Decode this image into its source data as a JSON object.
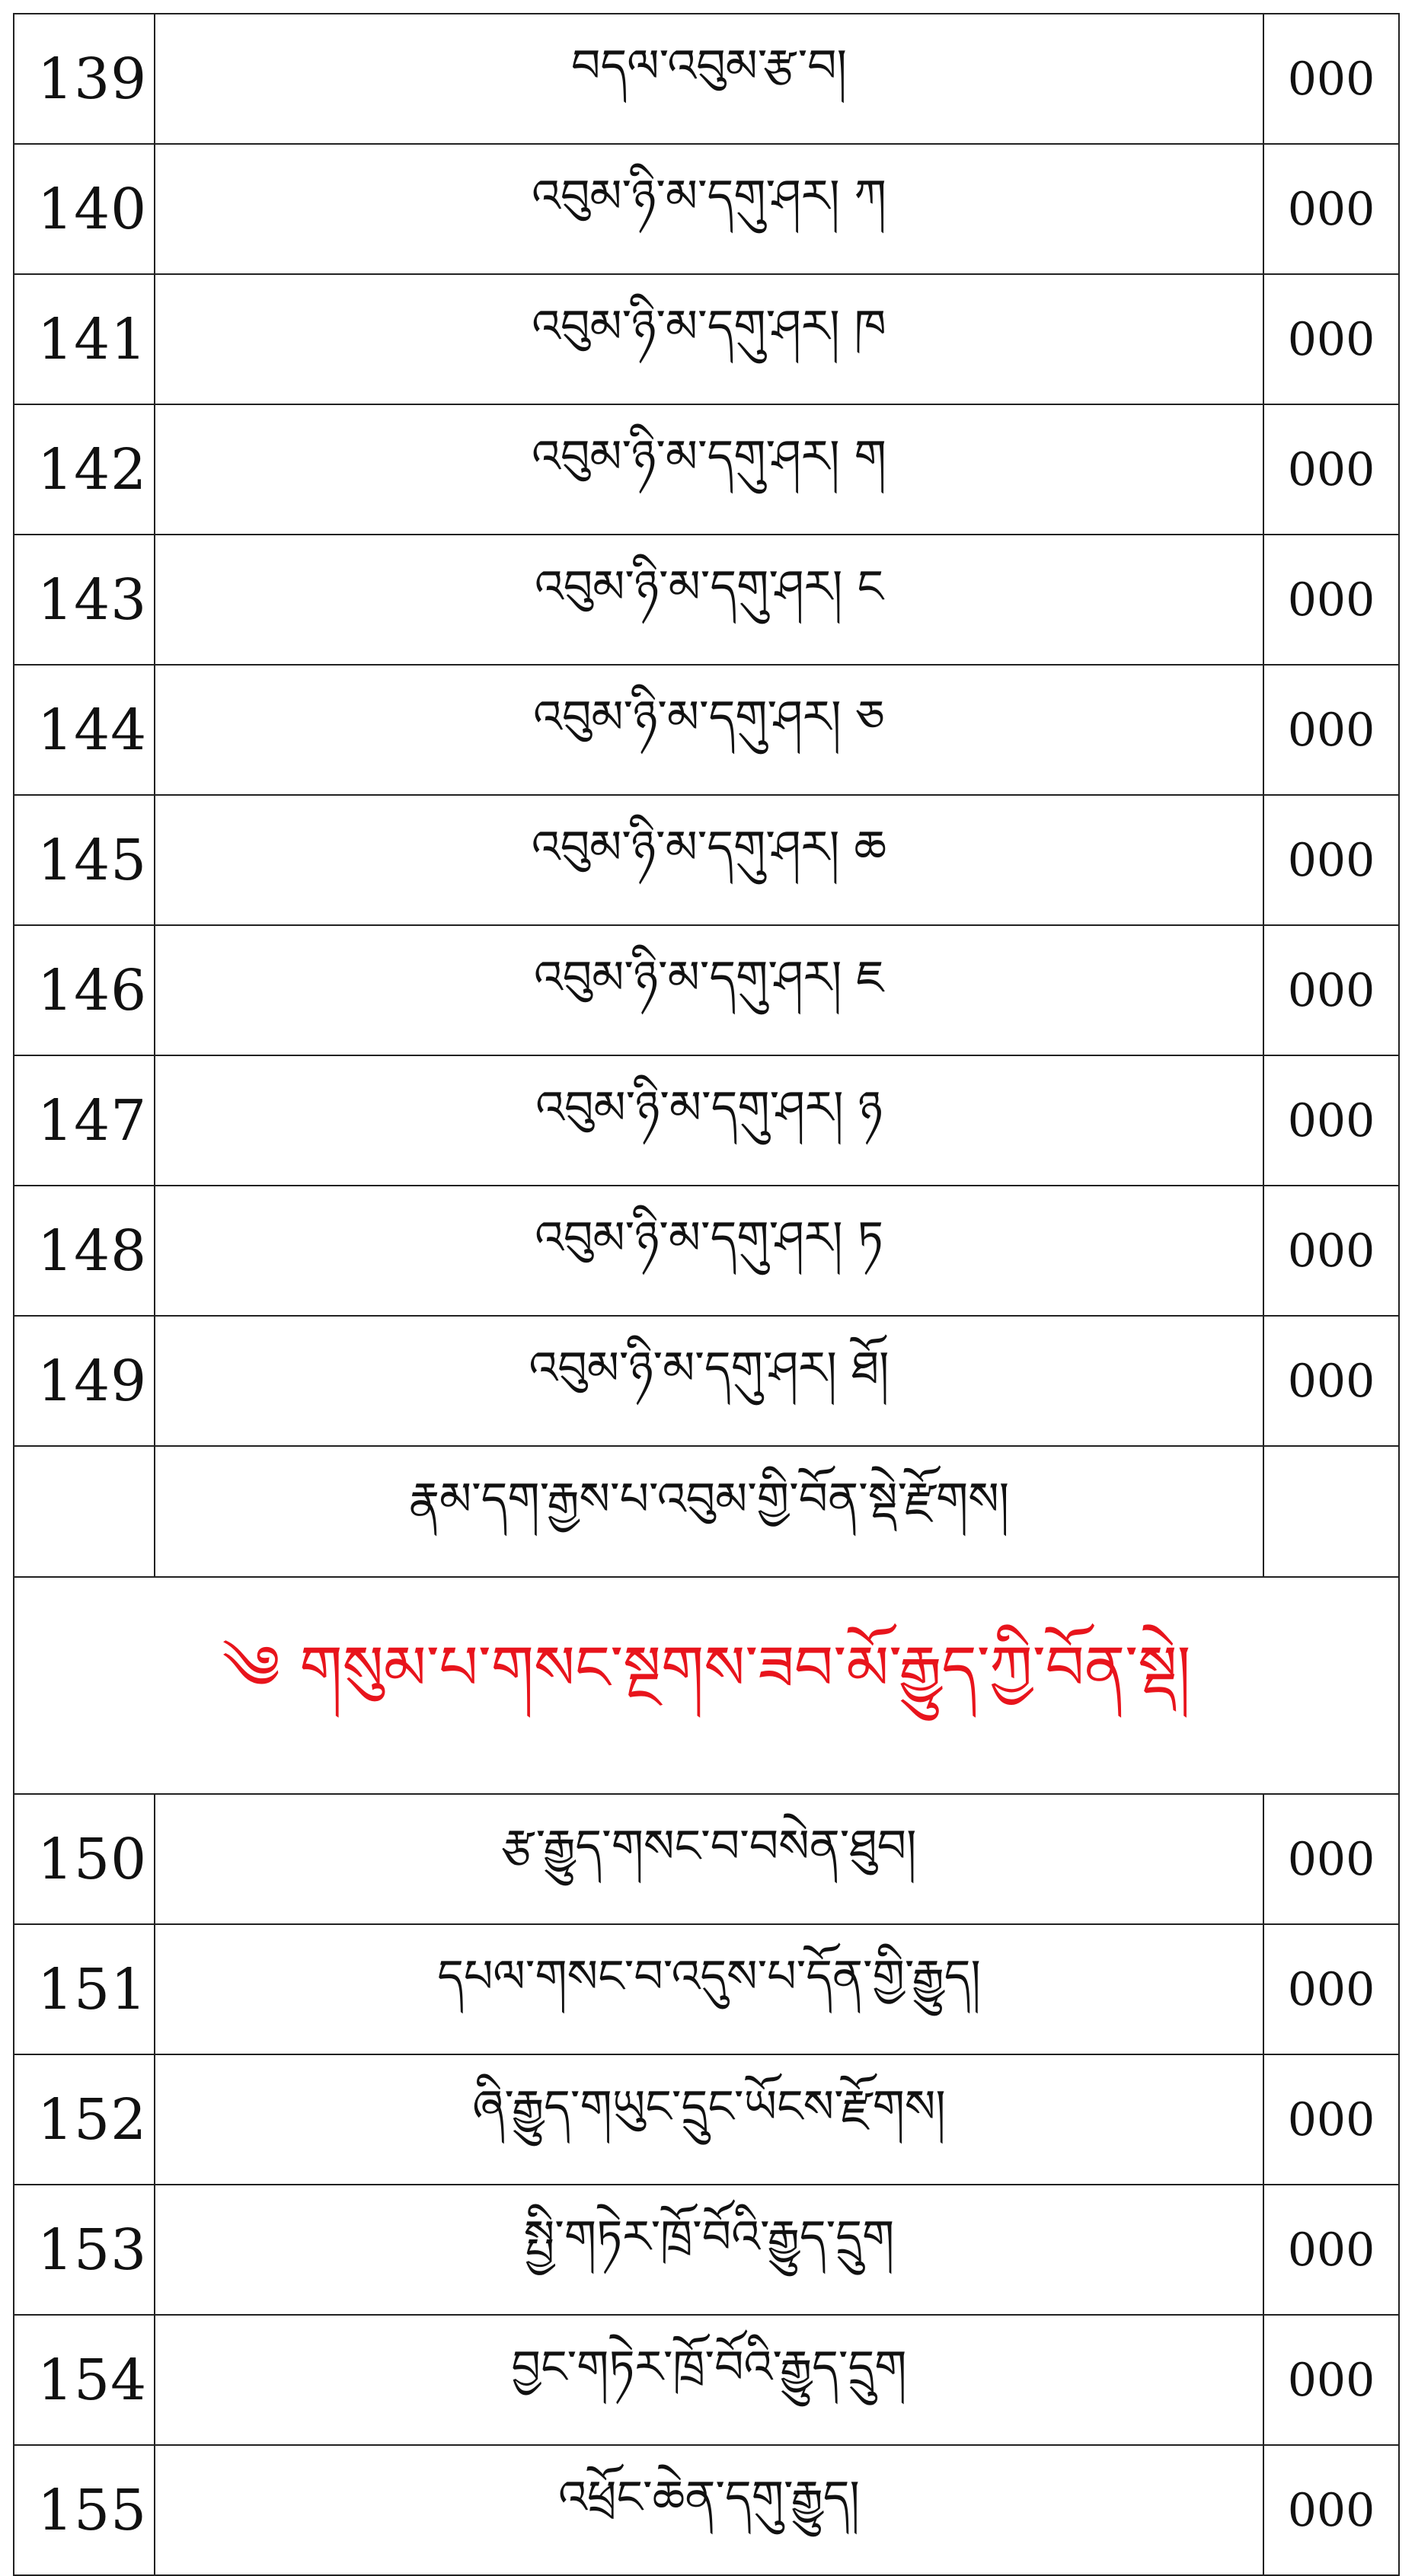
{
  "rows_before": [
    {
      "no": "139",
      "title": "བདལ་འབུམ་རྩ་བ།",
      "page": "000"
    },
    {
      "no": "140",
      "title": "འབུམ་ཉི་མ་དགུ་ཤར། ཀ",
      "page": "000"
    },
    {
      "no": "141",
      "title": "འབུམ་ཉི་མ་དགུ་ཤར། ཁ",
      "page": "000"
    },
    {
      "no": "142",
      "title": "འབུམ་ཉི་མ་དགུ་ཤར། ག",
      "page": "000"
    },
    {
      "no": "143",
      "title": "འབུམ་ཉི་མ་དགུ་ཤར། ང",
      "page": "000"
    },
    {
      "no": "144",
      "title": "འབུམ་ཉི་མ་དགུ་ཤར། ཅ",
      "page": "000"
    },
    {
      "no": "145",
      "title": "འབུམ་ཉི་མ་དགུ་ཤར། ཆ",
      "page": "000"
    },
    {
      "no": "146",
      "title": "འབུམ་ཉི་མ་དགུ་ཤར། ཇ",
      "page": "000"
    },
    {
      "no": "147",
      "title": "འབུམ་ཉི་མ་དགུ་ཤར། ཉ",
      "page": "000"
    },
    {
      "no": "148",
      "title": "འབུམ་ཉི་མ་དགུ་ཤར། ཏ",
      "page": "000"
    },
    {
      "no": "149",
      "title": "འབུམ་ཉི་མ་དགུ་ཤར། ཐོ།",
      "page": "000"
    }
  ],
  "section_end": "རྣམ་དག་རྒྱས་པ་འབུམ་གྱི་བོན་སྡེ་རྫོགས།",
  "section_heading": {
    "text": "༄ གསུམ་པ་གསང་སྔགས་ཟབ་མོ་རྒྱུད་ཀྱི་བོན་སྡེ།",
    "color": "#e8141c"
  },
  "rows_after": [
    {
      "no": "150",
      "title": "རྩ་རྒྱུད་གསང་བ་བསེན་ཐུབ།",
      "page": "000"
    },
    {
      "no": "151",
      "title": "དཔལ་གསང་བ་འདུས་པ་དོན་གྱི་རྒྱུད།",
      "page": "000"
    },
    {
      "no": "152",
      "title": "ཞི་རྒྱུད་གཡུང་དྲུང་ཡོངས་རྫོགས།",
      "page": "000"
    },
    {
      "no": "153",
      "title": "སྤྱི་གཏེར་ཁྲོ་བོའི་རྒྱུད་དྲུག",
      "page": "000"
    },
    {
      "no": "154",
      "title": "བྱང་གཏེར་ཁྲོ་བོའི་རྒྱུད་དྲུག",
      "page": "000"
    },
    {
      "no": "155",
      "title": "འཕྲོང་ཆེན་དགུ་རྒྱུད།",
      "page": "000"
    }
  ]
}
